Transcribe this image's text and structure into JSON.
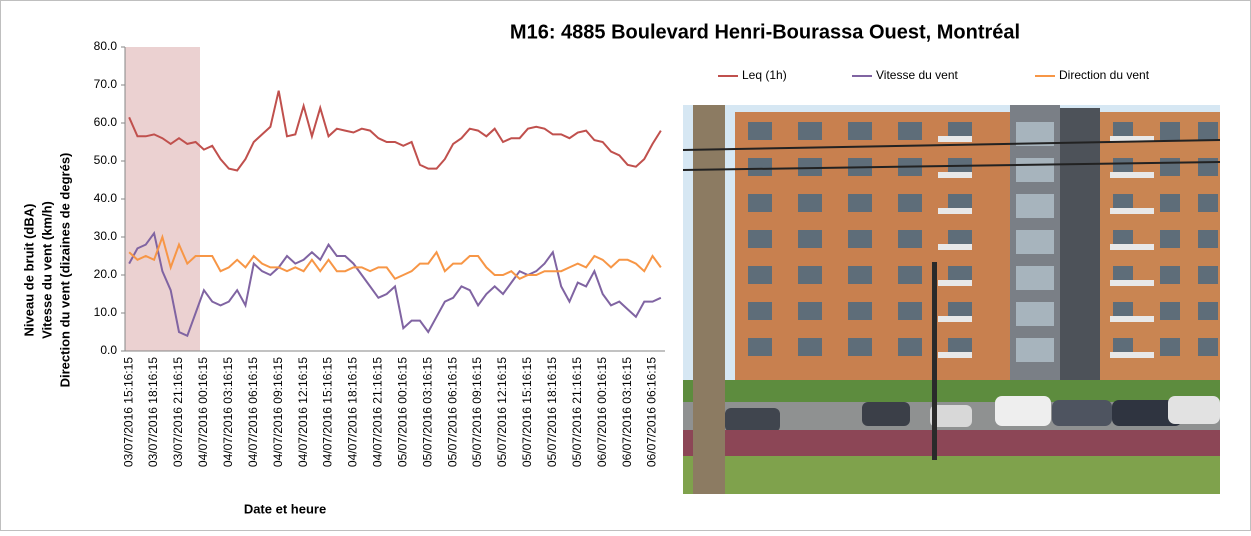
{
  "chart_data": {
    "type": "line",
    "title": "M16: 4885 Boulevard Henri-Bourassa Ouest, Montréal",
    "x_label": "Date et heure",
    "y_label": [
      "Niveau de bruit (dBA)",
      "Vitesse du vent (km/h)",
      "Direction du vent (dizaines de degrés)"
    ],
    "categories": [
      "03/07/2016 15:16:15",
      null,
      null,
      "03/07/2016 18:16:15",
      null,
      null,
      "03/07/2016 21:16:15",
      null,
      null,
      "04/07/2016 00:16:15",
      null,
      null,
      "04/07/2016 03:16:15",
      null,
      null,
      "04/07/2016 06:16:15",
      null,
      null,
      "04/07/2016 09:16:15",
      null,
      null,
      "04/07/2016 12:16:15",
      null,
      null,
      "04/07/2016 15:16:15",
      null,
      null,
      "04/07/2016 18:16:15",
      null,
      null,
      "04/07/2016 21:16:15",
      null,
      null,
      "05/07/2016 00:16:15",
      null,
      null,
      "05/07/2016 03:16:15",
      null,
      null,
      "05/07/2016 06:16:15",
      null,
      null,
      "05/07/2016 09:16:15",
      null,
      null,
      "05/07/2016 12:16:15",
      null,
      null,
      "05/07/2016 15:16:15",
      null,
      null,
      "05/07/2016 18:16:15",
      null,
      null,
      "05/07/2016 21:16:15",
      null,
      null,
      "06/07/2016 00:16:15",
      null,
      null,
      "06/07/2016 03:16:15",
      null,
      null,
      "06/07/2016 06:16:15",
      null
    ],
    "series": [
      {
        "name": "Leq (1h)",
        "color": "#c0504d",
        "values": [
          61.5,
          56.5,
          56.5,
          57,
          56,
          54.5,
          56,
          54.5,
          55,
          53,
          54,
          50.5,
          48,
          47.5,
          50.5,
          55,
          57,
          59,
          68.5,
          56.5,
          57,
          64.5,
          56.5,
          64,
          56.5,
          58.5,
          58,
          57.5,
          58.5,
          58,
          56,
          55,
          55,
          54,
          55,
          49,
          48,
          48,
          50.5,
          54.5,
          56,
          58.5,
          58,
          56.5,
          58.5,
          55,
          56,
          56,
          58.5,
          59,
          58.5,
          57,
          57,
          56,
          57.5,
          58,
          55.5,
          55,
          52.5,
          51.5,
          49,
          48.5,
          50.5,
          54.5,
          58
        ]
      },
      {
        "name": "Vitesse du vent",
        "color": "#8064a2",
        "values": [
          23,
          27,
          28,
          31,
          21,
          16,
          5,
          4,
          10,
          16,
          13,
          12,
          13,
          16,
          12,
          23,
          21,
          20,
          22,
          25,
          23,
          24,
          26,
          24,
          28,
          25,
          25,
          23,
          20,
          17,
          14,
          15,
          17,
          6,
          8,
          8,
          5,
          9,
          13,
          14,
          17,
          16,
          12,
          15,
          17,
          15,
          18,
          21,
          20,
          21,
          23,
          26,
          17,
          13,
          18,
          17,
          21,
          15,
          12,
          13,
          11,
          9,
          13,
          13,
          14
        ]
      },
      {
        "name": "Direction du vent",
        "color": "#f79646",
        "values": [
          26,
          24,
          25,
          24,
          30,
          22,
          28,
          23,
          25,
          25,
          25,
          21,
          22,
          24,
          22,
          25,
          23,
          22,
          22,
          21,
          22,
          21,
          24,
          21,
          24,
          21,
          21,
          22,
          22,
          21,
          22,
          22,
          19,
          20,
          21,
          23,
          23,
          26,
          21,
          23,
          23,
          25,
          25,
          22,
          20,
          20,
          21,
          19,
          20,
          20,
          21,
          21,
          21,
          22,
          23,
          22,
          25,
          24,
          22,
          24,
          24,
          23,
          21,
          25,
          22
        ]
      }
    ],
    "ylim": [
      0,
      80
    ],
    "yticks": [
      {
        "value": 0,
        "label": "0.0"
      },
      {
        "value": 10,
        "label": "10.0"
      },
      {
        "value": 20,
        "label": "20.0"
      },
      {
        "value": 30,
        "label": "30.0"
      },
      {
        "value": 40,
        "label": "40.0"
      },
      {
        "value": 50,
        "label": "50.0"
      },
      {
        "value": 60,
        "label": "60.0"
      },
      {
        "value": 70,
        "label": "70.0"
      },
      {
        "value": 80,
        "label": "80.0"
      }
    ],
    "legend": "top-right"
  }
}
